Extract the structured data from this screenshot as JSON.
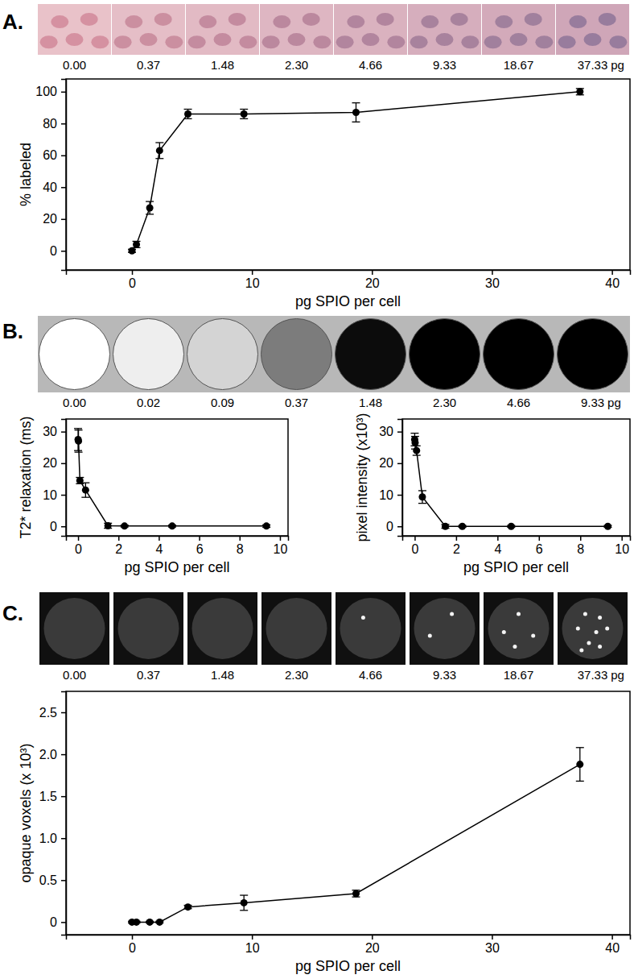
{
  "chart_data": [
    {
      "type": "line",
      "marker": "circle",
      "line_style": "solid",
      "color": "#000000",
      "grid": false,
      "x_label": "pg SPIO per cell",
      "y_label": "% labeled",
      "x": [
        0,
        0.37,
        1.48,
        2.3,
        4.66,
        9.33,
        18.67,
        37.33
      ],
      "values": [
        0,
        4,
        27,
        63,
        86,
        86,
        87,
        100
      ],
      "errors": [
        1,
        2,
        4,
        5,
        3,
        3,
        6,
        2
      ],
      "xlim": [
        -5.5,
        41.5
      ],
      "xticks": [
        0,
        10,
        20,
        30,
        40
      ],
      "ylim": [
        -12,
        108
      ],
      "yticks": [
        0,
        20,
        40,
        60,
        80,
        100
      ]
    },
    {
      "type": "line",
      "marker": "circle",
      "line_style": "solid",
      "color": "#000000",
      "grid": false,
      "x_label": "pg SPIO per cell",
      "y_label": "T2* relaxation (ms)",
      "x": [
        0,
        0.02,
        0.09,
        0.37,
        1.48,
        2.3,
        4.66,
        9.33
      ],
      "values": [
        27.5,
        27,
        14.5,
        11.5,
        0.2,
        0.1,
        0.1,
        0.1
      ],
      "errors": [
        3.5,
        3.5,
        1,
        2.3,
        0.8,
        0.3,
        0.3,
        0.4
      ],
      "xlim": [
        -0.6,
        10.4
      ],
      "xticks": [
        0,
        2,
        4,
        6,
        8,
        10
      ],
      "ylim": [
        -3,
        34
      ],
      "yticks": [
        0,
        10,
        20,
        30
      ]
    },
    {
      "type": "line",
      "marker": "circle",
      "line_style": "solid",
      "color": "#000000",
      "grid": false,
      "x_label": "pg SPIO per cell",
      "y_label": "pixel intensity (x10³)",
      "x": [
        0,
        0.02,
        0.09,
        0.37,
        1.48,
        2.3,
        4.66,
        9.33
      ],
      "values": [
        27.5,
        26.5,
        24,
        9.3,
        0,
        0,
        0,
        0
      ],
      "errors": [
        2,
        2,
        1.5,
        2,
        0.6,
        0.3,
        0.3,
        0.3
      ],
      "xlim": [
        -0.6,
        10.4
      ],
      "xticks": [
        0,
        2,
        4,
        6,
        8,
        10
      ],
      "ylim": [
        -3,
        34
      ],
      "yticks": [
        0,
        10,
        20,
        30
      ]
    },
    {
      "type": "line",
      "marker": "circle",
      "line_style": "solid",
      "color": "#000000",
      "grid": false,
      "x_label": "pg SPIO per cell",
      "y_label": "opaque voxels (x 10³)",
      "x": [
        0,
        0.37,
        1.48,
        2.3,
        4.66,
        9.33,
        18.67,
        37.33
      ],
      "values": [
        0,
        0,
        0,
        0,
        0.18,
        0.23,
        0.34,
        1.88
      ],
      "errors": [
        0.01,
        0.01,
        0.01,
        0.01,
        0.02,
        0.09,
        0.04,
        0.2
      ],
      "xlim": [
        -5.5,
        41.5
      ],
      "xticks": [
        0,
        10,
        20,
        30,
        40
      ],
      "ylim": [
        -0.15,
        2.75
      ],
      "yticks": [
        0,
        0.5,
        {
          "value": 1,
          "label": "1.0"
        },
        1.5,
        {
          "value": 2,
          "label": "2.0"
        },
        2.5
      ]
    }
  ],
  "figure": {
    "panels": [
      {
        "label": "A.",
        "images": [
          "0.00",
          "0.37",
          "1.48",
          "2.30",
          "4.66",
          "9.33",
          "18.67",
          "37.33"
        ],
        "unit": "pg"
      },
      {
        "label": "B.",
        "images": [
          "0.00",
          "0.02",
          "0.09",
          "0.37",
          "1.48",
          "2.30",
          "4.66",
          "9.33"
        ],
        "unit": "pg"
      },
      {
        "label": "C.",
        "images": [
          "0.00",
          "0.37",
          "1.48",
          "2.30",
          "4.66",
          "9.33",
          "18.67",
          "37.33"
        ],
        "unit": "pg"
      }
    ]
  }
}
